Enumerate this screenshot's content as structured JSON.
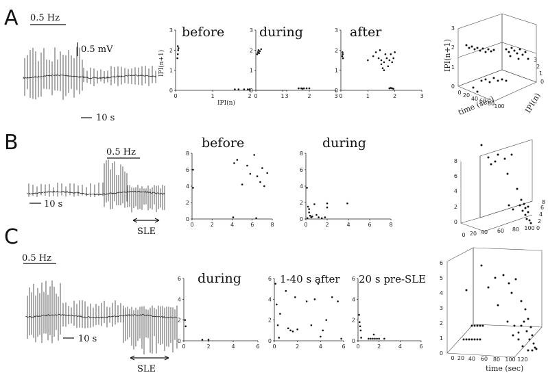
{
  "figure": {
    "rows": [
      {
        "id": "A",
        "label": "A",
        "trace": {
          "freq_label": "0.5 Hz",
          "volt_label": "0.5 mV",
          "time_label": "10 s",
          "sle_label": ""
        },
        "panels": [
          {
            "title": "before",
            "xlabel": "IPI(n)",
            "ylabel": "IPI(n+1)",
            "xlim": [
              0,
              3
            ],
            "ylim": [
              0,
              3
            ],
            "xticks": [
              "0",
              "1",
              "2",
              "3"
            ],
            "yticks": [
              "0",
              "1",
              "2",
              "3"
            ],
            "points": [
              [
                0.05,
                1.6
              ],
              [
                0.06,
                1.8
              ],
              [
                0.07,
                2.0
              ],
              [
                0.08,
                2.1
              ],
              [
                0.06,
                2.2
              ],
              [
                1.6,
                0.05
              ],
              [
                1.7,
                0.05
              ],
              [
                1.85,
                0.05
              ],
              [
                1.95,
                0.05
              ],
              [
                2.0,
                0.05
              ]
            ]
          },
          {
            "title": "during",
            "xlabel": "",
            "ylabel": "",
            "xlim": [
              0,
              3
            ],
            "ylim": [
              0,
              3
            ],
            "xticks": [
              "0",
              "1",
              "2",
              "3"
            ],
            "yticks": [
              "0",
              "1",
              "2",
              "3"
            ],
            "points": [
              [
                0.05,
                1.8
              ],
              [
                0.08,
                1.9
              ],
              [
                0.1,
                2.0
              ],
              [
                0.15,
                1.95
              ],
              [
                0.2,
                2.05
              ],
              [
                0.12,
                1.85
              ],
              [
                1.6,
                0.1
              ],
              [
                1.7,
                0.1
              ],
              [
                1.8,
                0.1
              ],
              [
                1.9,
                0.1
              ],
              [
                2.0,
                0.1
              ],
              [
                1.75,
                0.08
              ]
            ]
          },
          {
            "title": "after",
            "xlabel": "",
            "ylabel": "",
            "xlim": [
              0,
              3
            ],
            "ylim": [
              0,
              3
            ],
            "xticks": [
              "0",
              "1",
              "2",
              "3"
            ],
            "yticks": [
              "0",
              "1",
              "2",
              "3"
            ],
            "points": [
              [
                0.05,
                1.7
              ],
              [
                0.07,
                1.8
              ],
              [
                0.06,
                1.9
              ],
              [
                0.08,
                1.6
              ],
              [
                1.0,
                1.5
              ],
              [
                1.2,
                1.7
              ],
              [
                1.3,
                1.9
              ],
              [
                1.4,
                1.6
              ],
              [
                1.5,
                1.5
              ],
              [
                1.5,
                1.3
              ],
              [
                1.55,
                1.1
              ],
              [
                1.6,
                1.0
              ],
              [
                1.6,
                1.4
              ],
              [
                1.65,
                1.8
              ],
              [
                1.7,
                1.6
              ],
              [
                1.75,
                1.2
              ],
              [
                1.8,
                1.5
              ],
              [
                1.85,
                1.8
              ],
              [
                1.9,
                1.4
              ],
              [
                1.95,
                1.6
              ],
              [
                2.0,
                1.9
              ],
              [
                1.45,
                2.0
              ],
              [
                1.8,
                0.1
              ],
              [
                1.85,
                0.12
              ],
              [
                1.9,
                0.1
              ],
              [
                1.95,
                0.08
              ]
            ]
          }
        ],
        "plot3d": {
          "xlabel": "time (sec)",
          "ylabel": "IPI(n)",
          "zlabel": "IPI(n+1)",
          "xticks": [
            "0",
            "20",
            "40",
            "60",
            "80",
            "100"
          ],
          "yticks": [
            "0",
            "1",
            "2",
            "3"
          ],
          "zticks": [
            "0",
            "1",
            "2",
            "3"
          ]
        }
      },
      {
        "id": "B",
        "label": "B",
        "trace": {
          "freq_label": "0.5 Hz",
          "volt_label": "",
          "time_label": "10 s",
          "sle_label": "SLE"
        },
        "panels": [
          {
            "title": "before",
            "xlabel": "",
            "ylabel": "",
            "xlim": [
              0,
              8
            ],
            "ylim": [
              0,
              8
            ],
            "xticks": [
              "0",
              "2",
              "4",
              "6",
              "8"
            ],
            "yticks": [
              "0",
              "2",
              "4",
              "6",
              "8"
            ],
            "points": [
              [
                0.1,
                6.0
              ],
              [
                0.1,
                3.8
              ],
              [
                4.2,
                6.8
              ],
              [
                4.5,
                7.2
              ],
              [
                5.0,
                4.2
              ],
              [
                5.5,
                6.5
              ],
              [
                5.8,
                5.5
              ],
              [
                6.2,
                7.8
              ],
              [
                6.5,
                5.2
              ],
              [
                6.8,
                4.5
              ],
              [
                7.0,
                6.2
              ],
              [
                7.2,
                4.0
              ],
              [
                7.5,
                5.6
              ],
              [
                4.1,
                0.2
              ],
              [
                6.4,
                0.1
              ]
            ]
          },
          {
            "title": "during",
            "xlabel": "",
            "ylabel": "",
            "xlim": [
              0,
              8
            ],
            "ylim": [
              0,
              8
            ],
            "xticks": [
              "0",
              "2",
              "4",
              "6",
              "8"
            ],
            "yticks": [
              "0",
              "2",
              "4",
              "6",
              "8"
            ],
            "points": [
              [
                0.1,
                3.8
              ],
              [
                0.2,
                1.5
              ],
              [
                0.3,
                1.2
              ],
              [
                0.3,
                0.8
              ],
              [
                0.4,
                0.4
              ],
              [
                0.5,
                0.2
              ],
              [
                0.6,
                0.3
              ],
              [
                0.8,
                1.8
              ],
              [
                1.0,
                0.5
              ],
              [
                1.2,
                0.2
              ],
              [
                1.5,
                0.1
              ],
              [
                1.8,
                0.2
              ],
              [
                2.0,
                1.9
              ],
              [
                2.0,
                1.4
              ],
              [
                0.15,
                0.1
              ],
              [
                3.9,
                1.9
              ]
            ]
          }
        ],
        "plot3d": {
          "xlabel": "",
          "ylabel": "",
          "zlabel": "",
          "xticks": [
            "0",
            "20",
            "40",
            "60",
            "80",
            "100"
          ],
          "yticks": [
            "0",
            "2",
            "4",
            "6",
            "8"
          ],
          "zticks": [
            "0",
            "2",
            "4",
            "6",
            "8"
          ]
        }
      },
      {
        "id": "C",
        "label": "C",
        "trace": {
          "freq_label": "0.5 Hz",
          "volt_label": "",
          "time_label": "10 s",
          "sle_label": "SLE"
        },
        "panels": [
          {
            "title": "during",
            "xlabel": "",
            "ylabel": "",
            "xlim": [
              0,
              6
            ],
            "ylim": [
              0,
              6
            ],
            "xticks": [
              "0",
              "2",
              "4",
              "6"
            ],
            "yticks": [
              "0",
              "2",
              "4",
              "6"
            ],
            "points": [
              [
                0.1,
                2.0
              ],
              [
                0.15,
                1.4
              ],
              [
                1.5,
                0.1
              ],
              [
                2.0,
                0.1
              ]
            ]
          },
          {
            "title": "1-40 s after",
            "xlabel": "",
            "ylabel": "",
            "xlim": [
              0,
              6
            ],
            "ylim": [
              0,
              6
            ],
            "xticks": [
              "0",
              "2",
              "4",
              "6"
            ],
            "yticks": [
              "0",
              "2",
              "4",
              "6"
            ],
            "points": [
              [
                0.1,
                5.5
              ],
              [
                0.2,
                3.5
              ],
              [
                0.3,
                1.5
              ],
              [
                0.4,
                0.3
              ],
              [
                1.0,
                4.8
              ],
              [
                1.2,
                1.2
              ],
              [
                1.4,
                1.0
              ],
              [
                1.6,
                0.9
              ],
              [
                1.8,
                4.2
              ],
              [
                2.0,
                1.1
              ],
              [
                2.8,
                3.8
              ],
              [
                3.2,
                1.5
              ],
              [
                3.5,
                4.0
              ],
              [
                3.8,
                5.5
              ],
              [
                4.0,
                0.4
              ],
              [
                4.2,
                1.0
              ],
              [
                4.5,
                2.0
              ],
              [
                5.0,
                4.2
              ],
              [
                5.5,
                3.8
              ],
              [
                5.8,
                0.2
              ],
              [
                0.5,
                2.6
              ]
            ]
          },
          {
            "title": "20 s pre-SLE",
            "xlabel": "",
            "ylabel": "",
            "xlim": [
              0,
              6
            ],
            "ylim": [
              0,
              6
            ],
            "xticks": [
              "0",
              "2",
              "4",
              "6"
            ],
            "yticks": [
              "0",
              "2",
              "4",
              "6"
            ],
            "points": [
              [
                0.1,
                2.5
              ],
              [
                0.15,
                1.8
              ],
              [
                0.2,
                1.4
              ],
              [
                0.25,
                1.0
              ],
              [
                0.3,
                0.3
              ],
              [
                1.0,
                0.2
              ],
              [
                1.2,
                0.2
              ],
              [
                1.4,
                0.2
              ],
              [
                1.6,
                0.2
              ],
              [
                1.8,
                0.2
              ],
              [
                2.0,
                0.2
              ],
              [
                1.5,
                0.6
              ],
              [
                2.5,
                0.2
              ]
            ]
          }
        ],
        "plot3d": {
          "xlabel": "time (sec)",
          "ylabel": "",
          "zlabel": "",
          "xticks": [
            "0",
            "20",
            "40",
            "60",
            "80",
            "100",
            "120"
          ],
          "yticks": [],
          "zticks": [
            "0",
            "1",
            "2",
            "3",
            "4",
            "5",
            "6"
          ]
        }
      }
    ]
  }
}
